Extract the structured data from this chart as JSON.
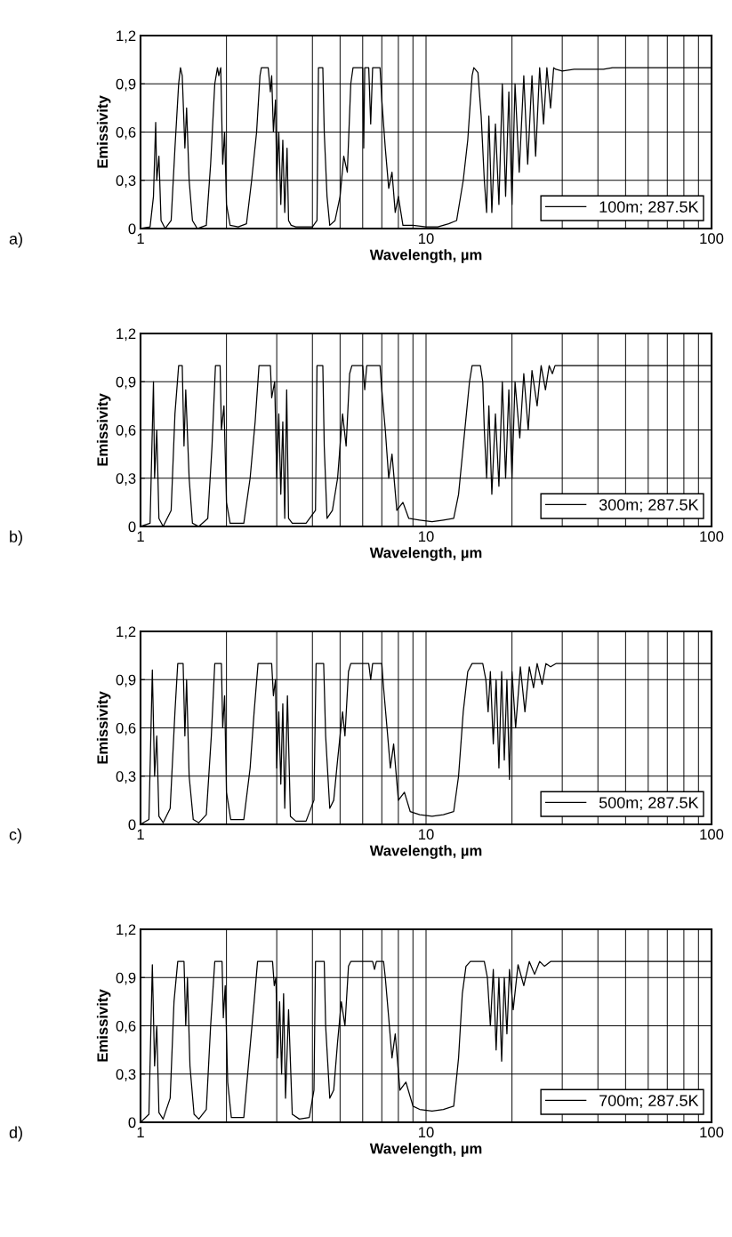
{
  "chart_data": [
    {
      "type": "line",
      "xlabel": "Wavelength, µm",
      "ylabel": "Emissivity",
      "log": "x",
      "grid": true,
      "legend": "bottom right",
      "annotations": [
        "a)"
      ],
      "xlim": [
        1,
        100
      ],
      "ylim": [
        0,
        1.2
      ],
      "xticks": [
        1,
        {
          "value": 2,
          "label": null
        },
        {
          "value": 3,
          "label": null
        },
        {
          "value": 4,
          "label": null
        },
        {
          "value": 5,
          "label": null
        },
        {
          "value": 6,
          "label": null
        },
        {
          "value": 7,
          "label": null
        },
        {
          "value": 8,
          "label": null
        },
        {
          "value": 9,
          "label": null
        },
        10,
        {
          "value": 20,
          "label": null
        },
        {
          "value": 30,
          "label": null
        },
        {
          "value": 40,
          "label": null
        },
        {
          "value": 50,
          "label": null
        },
        {
          "value": 60,
          "label": null
        },
        {
          "value": 70,
          "label": null
        },
        {
          "value": 80,
          "label": null
        },
        {
          "value": 90,
          "label": null
        },
        100
      ],
      "yticks": [
        0,
        {
          "value": 0.3,
          "label": "0,3"
        },
        {
          "value": 0.6,
          "label": "0,6"
        },
        {
          "value": 0.9,
          "label": "0,9"
        },
        {
          "value": 1.2,
          "label": "1,2"
        }
      ],
      "series": [
        {
          "name": "100m; 287.5K",
          "color": "#000000",
          "x": [
            1.0,
            1.08,
            1.11,
            1.13,
            1.14,
            1.16,
            1.18,
            1.22,
            1.28,
            1.32,
            1.36,
            1.38,
            1.4,
            1.43,
            1.45,
            1.48,
            1.52,
            1.58,
            1.7,
            1.76,
            1.82,
            1.86,
            1.88,
            1.91,
            1.94,
            1.97,
            2.0,
            2.06,
            2.2,
            2.35,
            2.45,
            2.55,
            2.62,
            2.65,
            2.8,
            2.85,
            2.88,
            2.92,
            2.97,
            3.0,
            3.05,
            3.1,
            3.15,
            3.2,
            3.26,
            3.3,
            3.37,
            3.5,
            4.0,
            4.15,
            4.2,
            4.35,
            4.4,
            4.5,
            4.6,
            4.8,
            5.0,
            5.15,
            5.3,
            5.45,
            5.55,
            6.0,
            6.05,
            6.1,
            6.3,
            6.4,
            6.5,
            6.9,
            7.0,
            7.2,
            7.4,
            7.6,
            7.8,
            8.0,
            8.3,
            9.0,
            10.0,
            11.0,
            12.0,
            12.8,
            13.5,
            14.0,
            14.5,
            14.7,
            15.2,
            15.6,
            16.0,
            16.3,
            16.6,
            17.0,
            17.5,
            18.0,
            18.5,
            19.0,
            19.5,
            20.0,
            20.5,
            21.2,
            22.0,
            22.7,
            23.5,
            24.2,
            25.0,
            25.8,
            26.5,
            27.3,
            28.0,
            28.5,
            30.0,
            33.0,
            41.8,
            45.0,
            100
          ],
          "values": [
            0,
            0.01,
            0.2,
            0.66,
            0.3,
            0.45,
            0.05,
            0,
            0.05,
            0.5,
            0.9,
            1.0,
            0.95,
            0.5,
            0.75,
            0.3,
            0.05,
            0,
            0.02,
            0.4,
            0.9,
            1.0,
            0.95,
            1.0,
            0.4,
            0.6,
            0.15,
            0.02,
            0.01,
            0.03,
            0.3,
            0.6,
            0.95,
            1.0,
            1.0,
            0.85,
            0.95,
            0.6,
            0.8,
            0.3,
            0.6,
            0.15,
            0.55,
            0.1,
            0.5,
            0.05,
            0.02,
            0.01,
            0.01,
            0.05,
            1.0,
            1.0,
            0.6,
            0.2,
            0.02,
            0.05,
            0.2,
            0.45,
            0.35,
            0.9,
            1.0,
            1.0,
            0.5,
            1.0,
            1.0,
            0.65,
            1.0,
            1.0,
            0.8,
            0.5,
            0.25,
            0.35,
            0.1,
            0.2,
            0.02,
            0.02,
            0.01,
            0.01,
            0.03,
            0.05,
            0.3,
            0.55,
            0.95,
            1.0,
            0.97,
            0.7,
            0.3,
            0.1,
            0.7,
            0.1,
            0.65,
            0.15,
            0.9,
            0.2,
            0.85,
            0.15,
            0.9,
            0.35,
            0.95,
            0.4,
            0.95,
            0.45,
            1.0,
            0.65,
            1.0,
            0.75,
            1.0,
            0.99,
            0.98,
            0.99,
            0.99,
            1.0,
            1.0
          ]
        }
      ]
    },
    {
      "type": "line",
      "xlabel": "Wavelength, µm",
      "ylabel": "Emissivity",
      "log": "x",
      "grid": true,
      "legend": "bottom right",
      "annotations": [
        "b)"
      ],
      "xlim": [
        1,
        100
      ],
      "ylim": [
        0,
        1.2
      ],
      "xticks": [
        1,
        {
          "value": 2,
          "label": null
        },
        {
          "value": 3,
          "label": null
        },
        {
          "value": 4,
          "label": null
        },
        {
          "value": 5,
          "label": null
        },
        {
          "value": 6,
          "label": null
        },
        {
          "value": 7,
          "label": null
        },
        {
          "value": 8,
          "label": null
        },
        {
          "value": 9,
          "label": null
        },
        10,
        {
          "value": 20,
          "label": null
        },
        {
          "value": 30,
          "label": null
        },
        {
          "value": 40,
          "label": null
        },
        {
          "value": 50,
          "label": null
        },
        {
          "value": 60,
          "label": null
        },
        {
          "value": 70,
          "label": null
        },
        {
          "value": 80,
          "label": null
        },
        {
          "value": 90,
          "label": null
        },
        100
      ],
      "yticks": [
        0,
        {
          "value": 0.3,
          "label": "0,3"
        },
        {
          "value": 0.6,
          "label": "0,6"
        },
        {
          "value": 0.9,
          "label": "0,9"
        },
        {
          "value": 1.2,
          "label": "1,2"
        }
      ],
      "series": [
        {
          "name": "300m; 287.5K",
          "color": "#000000",
          "x": [
            1.0,
            1.08,
            1.11,
            1.12,
            1.14,
            1.16,
            1.2,
            1.28,
            1.32,
            1.36,
            1.4,
            1.42,
            1.44,
            1.48,
            1.52,
            1.6,
            1.72,
            1.78,
            1.83,
            1.9,
            1.92,
            1.96,
            2.0,
            2.06,
            2.3,
            2.42,
            2.52,
            2.6,
            2.85,
            2.88,
            2.95,
            3.0,
            3.05,
            3.1,
            3.15,
            3.2,
            3.25,
            3.3,
            3.4,
            3.8,
            4.1,
            4.15,
            4.35,
            4.4,
            4.5,
            4.7,
            4.9,
            5.1,
            5.25,
            5.4,
            5.5,
            6.0,
            6.1,
            6.2,
            6.9,
            7.0,
            7.2,
            7.4,
            7.6,
            7.9,
            8.3,
            8.7,
            9.5,
            10.5,
            11.5,
            12.5,
            13.0,
            13.5,
            14.2,
            14.5,
            15.5,
            15.8,
            16.0,
            16.3,
            16.6,
            17.0,
            17.5,
            18.0,
            18.5,
            19.0,
            19.5,
            20.0,
            20.5,
            21.3,
            22.0,
            22.8,
            23.5,
            24.5,
            25.3,
            26.2,
            27.0,
            27.7,
            28.3,
            100
          ],
          "values": [
            0,
            0.02,
            0.9,
            0.3,
            0.6,
            0.05,
            0,
            0.1,
            0.7,
            1.0,
            1.0,
            0.5,
            0.85,
            0.3,
            0.02,
            0,
            0.05,
            0.5,
            1.0,
            1.0,
            0.6,
            0.75,
            0.15,
            0.02,
            0.02,
            0.3,
            0.65,
            1.0,
            1.0,
            0.8,
            0.9,
            0.3,
            0.7,
            0.2,
            0.65,
            0.05,
            0.85,
            0.05,
            0.02,
            0.02,
            0.1,
            1.0,
            1.0,
            0.5,
            0.05,
            0.1,
            0.3,
            0.7,
            0.5,
            0.95,
            1.0,
            1.0,
            0.85,
            1.0,
            1.0,
            0.85,
            0.6,
            0.3,
            0.45,
            0.1,
            0.15,
            0.05,
            0.04,
            0.03,
            0.04,
            0.05,
            0.2,
            0.5,
            0.9,
            1.0,
            1.0,
            0.9,
            0.6,
            0.3,
            0.75,
            0.2,
            0.7,
            0.25,
            0.9,
            0.3,
            0.85,
            0.3,
            0.9,
            0.55,
            0.95,
            0.6,
            0.97,
            0.75,
            1.0,
            0.85,
            1.0,
            0.95,
            1.0,
            1.0
          ]
        }
      ]
    },
    {
      "type": "line",
      "xlabel": "Wavelength, µm",
      "ylabel": "Emissivity",
      "log": "x",
      "grid": true,
      "legend": "bottom right",
      "annotations": [
        "c)"
      ],
      "xlim": [
        1,
        100
      ],
      "ylim": [
        0,
        1.2
      ],
      "xticks": [
        1,
        {
          "value": 2,
          "label": null
        },
        {
          "value": 3,
          "label": null
        },
        {
          "value": 4,
          "label": null
        },
        {
          "value": 5,
          "label": null
        },
        {
          "value": 6,
          "label": null
        },
        {
          "value": 7,
          "label": null
        },
        {
          "value": 8,
          "label": null
        },
        {
          "value": 9,
          "label": null
        },
        10,
        {
          "value": 20,
          "label": null
        },
        {
          "value": 30,
          "label": null
        },
        {
          "value": 40,
          "label": null
        },
        {
          "value": 50,
          "label": null
        },
        {
          "value": 60,
          "label": null
        },
        {
          "value": 70,
          "label": null
        },
        {
          "value": 80,
          "label": null
        },
        {
          "value": 90,
          "label": null
        },
        100
      ],
      "yticks": [
        0,
        {
          "value": 0.3,
          "label": "0,3"
        },
        {
          "value": 0.6,
          "label": "0,6"
        },
        {
          "value": 0.9,
          "label": "0,9"
        },
        {
          "value": 1.2,
          "label": "1,2"
        }
      ],
      "series": [
        {
          "name": "500m; 287.5K",
          "color": "#000000",
          "x": [
            1.0,
            1.07,
            1.1,
            1.12,
            1.14,
            1.16,
            1.2,
            1.27,
            1.32,
            1.35,
            1.41,
            1.43,
            1.45,
            1.48,
            1.53,
            1.6,
            1.7,
            1.77,
            1.82,
            1.92,
            1.94,
            1.97,
            2.0,
            2.07,
            2.3,
            2.42,
            2.5,
            2.58,
            2.88,
            2.92,
            2.97,
            3.0,
            3.05,
            3.1,
            3.15,
            3.2,
            3.27,
            3.35,
            3.5,
            3.8,
            4.05,
            4.12,
            4.38,
            4.45,
            4.6,
            4.75,
            4.9,
            5.1,
            5.2,
            5.35,
            5.45,
            6.3,
            6.4,
            6.5,
            7.0,
            7.1,
            7.3,
            7.5,
            7.7,
            8.0,
            8.4,
            8.8,
            9.5,
            10.5,
            11.5,
            12.5,
            13.0,
            13.5,
            14.0,
            14.5,
            15.8,
            16.2,
            16.5,
            16.8,
            17.2,
            17.6,
            18.0,
            18.4,
            18.8,
            19.2,
            19.6,
            20.0,
            20.6,
            21.4,
            22.2,
            23.0,
            23.8,
            24.5,
            25.5,
            26.3,
            27.3,
            28.5,
            100
          ],
          "values": [
            0,
            0.03,
            0.96,
            0.3,
            0.55,
            0.05,
            0.01,
            0.1,
            0.7,
            1.0,
            1.0,
            0.55,
            0.9,
            0.3,
            0.03,
            0.01,
            0.06,
            0.55,
            1.0,
            1.0,
            0.6,
            0.8,
            0.2,
            0.03,
            0.03,
            0.35,
            0.7,
            1.0,
            1.0,
            0.8,
            0.9,
            0.35,
            0.7,
            0.25,
            0.75,
            0.1,
            0.8,
            0.05,
            0.02,
            0.02,
            0.15,
            1.0,
            1.0,
            0.55,
            0.1,
            0.15,
            0.4,
            0.7,
            0.55,
            0.95,
            1.0,
            1.0,
            0.9,
            1.0,
            1.0,
            0.85,
            0.6,
            0.35,
            0.5,
            0.15,
            0.2,
            0.08,
            0.06,
            0.05,
            0.06,
            0.08,
            0.3,
            0.7,
            0.95,
            1.0,
            1.0,
            0.9,
            0.7,
            0.95,
            0.5,
            0.9,
            0.35,
            0.95,
            0.4,
            0.9,
            0.28,
            0.95,
            0.6,
            0.98,
            0.7,
            0.98,
            0.85,
            1.0,
            0.87,
            1.0,
            0.98,
            1.0,
            1.0
          ]
        }
      ]
    },
    {
      "type": "line",
      "xlabel": "Wavelength, µm",
      "ylabel": "Emissivity",
      "log": "x",
      "grid": true,
      "legend": "bottom right",
      "annotations": [
        "d)"
      ],
      "xlim": [
        1,
        100
      ],
      "ylim": [
        0,
        1.2
      ],
      "xticks": [
        1,
        {
          "value": 2,
          "label": null
        },
        {
          "value": 3,
          "label": null
        },
        {
          "value": 4,
          "label": null
        },
        {
          "value": 5,
          "label": null
        },
        {
          "value": 6,
          "label": null
        },
        {
          "value": 7,
          "label": null
        },
        {
          "value": 8,
          "label": null
        },
        {
          "value": 9,
          "label": null
        },
        10,
        {
          "value": 20,
          "label": null
        },
        {
          "value": 30,
          "label": null
        },
        {
          "value": 40,
          "label": null
        },
        {
          "value": 50,
          "label": null
        },
        {
          "value": 60,
          "label": null
        },
        {
          "value": 70,
          "label": null
        },
        {
          "value": 80,
          "label": null
        },
        {
          "value": 90,
          "label": null
        },
        100
      ],
      "yticks": [
        0,
        {
          "value": 0.3,
          "label": "0,3"
        },
        {
          "value": 0.6,
          "label": "0,6"
        },
        {
          "value": 0.9,
          "label": "0,9"
        },
        {
          "value": 1.2,
          "label": "1,2"
        }
      ],
      "series": [
        {
          "name": "700m; 287.5K",
          "color": "#000000",
          "x": [
            1.0,
            1.07,
            1.1,
            1.12,
            1.14,
            1.16,
            1.2,
            1.27,
            1.31,
            1.35,
            1.42,
            1.44,
            1.46,
            1.49,
            1.54,
            1.6,
            1.7,
            1.76,
            1.82,
            1.93,
            1.95,
            1.98,
            2.02,
            2.08,
            2.3,
            2.4,
            2.5,
            2.57,
            2.9,
            2.94,
            2.98,
            3.02,
            3.07,
            3.12,
            3.17,
            3.22,
            3.3,
            3.4,
            3.6,
            3.9,
            4.05,
            4.1,
            4.4,
            4.45,
            4.6,
            4.75,
            4.9,
            5.05,
            5.2,
            5.35,
            5.45,
            6.5,
            6.6,
            6.7,
            7.1,
            7.2,
            7.4,
            7.6,
            7.8,
            8.1,
            8.5,
            9.0,
            9.5,
            10.5,
            11.5,
            12.5,
            13.0,
            13.4,
            13.8,
            14.3,
            16.0,
            16.4,
            16.8,
            17.2,
            17.6,
            18.0,
            18.4,
            18.8,
            19.2,
            19.6,
            20.2,
            21.0,
            22.0,
            23.0,
            24.0,
            25.0,
            26.0,
            27.3,
            100
          ],
          "values": [
            0,
            0.05,
            0.98,
            0.35,
            0.6,
            0.06,
            0.02,
            0.15,
            0.75,
            1.0,
            1.0,
            0.6,
            0.9,
            0.35,
            0.05,
            0.02,
            0.08,
            0.6,
            1.0,
            1.0,
            0.65,
            0.85,
            0.25,
            0.03,
            0.03,
            0.4,
            0.75,
            1.0,
            1.0,
            0.85,
            0.9,
            0.4,
            0.75,
            0.3,
            0.8,
            0.15,
            0.7,
            0.05,
            0.02,
            0.03,
            0.2,
            1.0,
            1.0,
            0.6,
            0.15,
            0.2,
            0.5,
            0.75,
            0.6,
            0.97,
            1.0,
            1.0,
            0.95,
            1.0,
            1.0,
            0.9,
            0.65,
            0.4,
            0.55,
            0.2,
            0.25,
            0.1,
            0.08,
            0.07,
            0.08,
            0.1,
            0.4,
            0.8,
            0.97,
            1.0,
            1.0,
            0.9,
            0.6,
            0.95,
            0.45,
            0.9,
            0.38,
            0.9,
            0.55,
            0.95,
            0.7,
            0.98,
            0.85,
            1.0,
            0.92,
            1.0,
            0.97,
            1.0,
            1.0
          ]
        }
      ]
    }
  ]
}
